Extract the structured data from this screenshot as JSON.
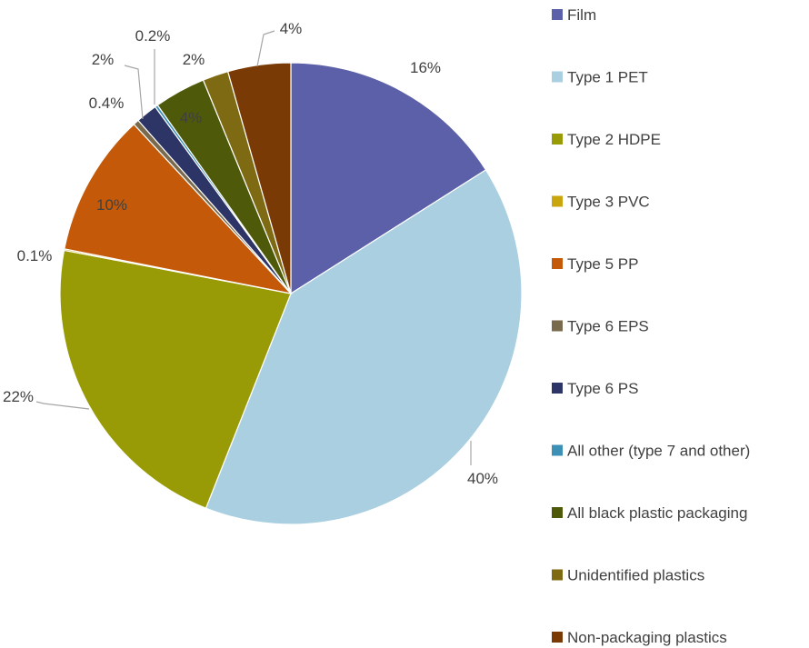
{
  "chart_data": {
    "type": "pie",
    "title": "",
    "legend_position": "right",
    "slices": [
      {
        "name": "Film",
        "value": 16,
        "label": "16%",
        "color": "#5b60a8"
      },
      {
        "name": "Type 1 PET",
        "value": 40,
        "label": "40%",
        "color": "#a9cfe0"
      },
      {
        "name": "Type 2 HDPE",
        "value": 22,
        "label": "22%",
        "color": "#989b05"
      },
      {
        "name": "Type 3 PVC",
        "value": 0.1,
        "label": "0.1%",
        "color": "#c9a50e"
      },
      {
        "name": "Type 5 PP",
        "value": 10,
        "label": "10%",
        "color": "#c45a09"
      },
      {
        "name": "Type 6 EPS",
        "value": 0.4,
        "label": "0.4%",
        "color": "#7a6a4d"
      },
      {
        "name": "Type 6 PS",
        "value": 1.5,
        "label": "2%",
        "color": "#2c3566"
      },
      {
        "name": "All other (type 7 and other)",
        "value": 0.2,
        "label": "0.2%",
        "color": "#3c8fb5"
      },
      {
        "name": "All black plastic packaging",
        "value": 3.6,
        "label": "4%",
        "color": "#4e5a0a"
      },
      {
        "name": "Unidentified plastics",
        "value": 1.8,
        "label": "2%",
        "color": "#7d6a12"
      },
      {
        "name": "Non-packaging plastics",
        "value": 4.4,
        "label": "4%",
        "color": "#7a3a05"
      }
    ]
  }
}
